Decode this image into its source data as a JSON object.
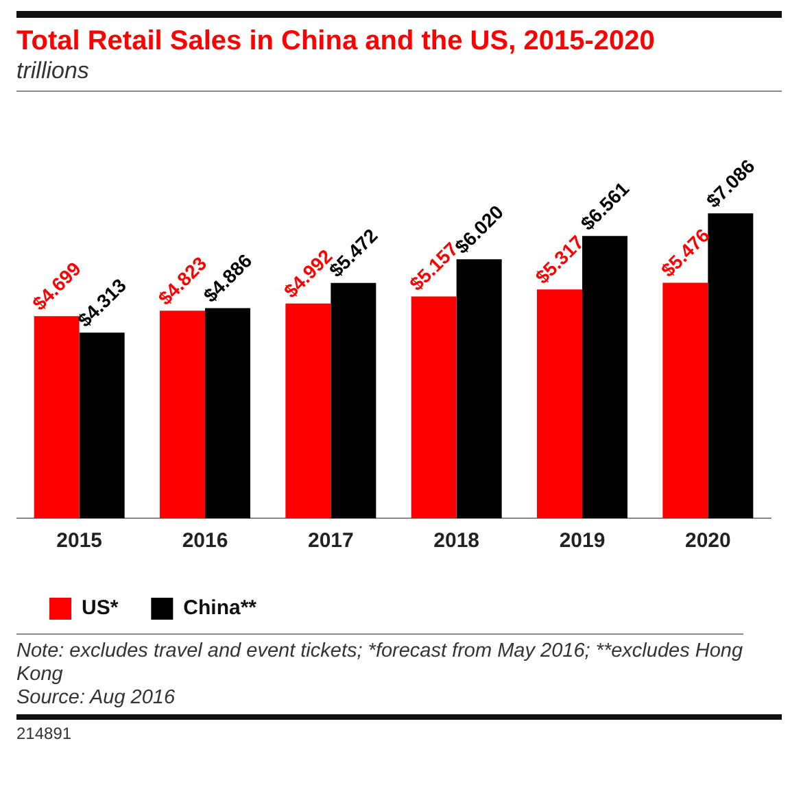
{
  "chart_data": {
    "type": "bar",
    "title": "Total Retail Sales in China and the US, 2015-2020",
    "subtitle": "trillions",
    "categories": [
      "2015",
      "2016",
      "2017",
      "2018",
      "2019",
      "2020"
    ],
    "series": [
      {
        "name": "US*",
        "color": "#ff0000",
        "values": [
          4.699,
          4.823,
          4.992,
          5.157,
          5.317,
          5.476
        ],
        "value_labels": [
          "$4.699",
          "$4.823",
          "$4.992",
          "$5.157",
          "$5.317",
          "$5.476"
        ]
      },
      {
        "name": "China**",
        "color": "#000000",
        "values": [
          4.313,
          4.886,
          5.472,
          6.02,
          6.561,
          7.086
        ],
        "value_labels": [
          "$4.313",
          "$4.886",
          "$5.472",
          "$6.020",
          "$6.561",
          "$7.086"
        ]
      }
    ],
    "legend": "bottom left",
    "grid": false,
    "annotations": [
      "Note: excludes travel and event tickets; *forecast from May 2016; **excludes Hong Kong",
      "Source: Aug 2016",
      "214891"
    ]
  }
}
